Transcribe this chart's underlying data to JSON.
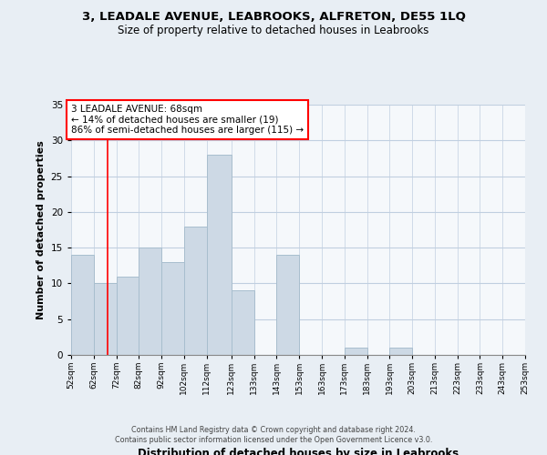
{
  "title": "3, LEADALE AVENUE, LEABROOKS, ALFRETON, DE55 1LQ",
  "subtitle": "Size of property relative to detached houses in Leabrooks",
  "xlabel": "Distribution of detached houses by size in Leabrooks",
  "ylabel": "Number of detached properties",
  "bin_edges": [
    52,
    62,
    72,
    82,
    92,
    102,
    112,
    123,
    133,
    143,
    153,
    163,
    173,
    183,
    193,
    203,
    213,
    223,
    233,
    243,
    253
  ],
  "bar_heights": [
    14,
    10,
    11,
    15,
    13,
    18,
    28,
    9,
    0,
    14,
    0,
    0,
    1,
    0,
    1,
    0,
    0,
    0,
    0,
    0
  ],
  "bar_color": "#cdd9e5",
  "bar_edgecolor": "#a8bece",
  "red_line_x": 68,
  "annotation_title": "3 LEADALE AVENUE: 68sqm",
  "annotation_line1": "← 14% of detached houses are smaller (19)",
  "annotation_line2": "86% of semi-detached houses are larger (115) →",
  "ylim": [
    0,
    35
  ],
  "yticks": [
    0,
    5,
    10,
    15,
    20,
    25,
    30,
    35
  ],
  "xtick_labels": [
    "52sqm",
    "62sqm",
    "72sqm",
    "82sqm",
    "92sqm",
    "102sqm",
    "112sqm",
    "123sqm",
    "133sqm",
    "143sqm",
    "153sqm",
    "163sqm",
    "173sqm",
    "183sqm",
    "193sqm",
    "203sqm",
    "213sqm",
    "223sqm",
    "233sqm",
    "243sqm",
    "253sqm"
  ],
  "footer_line1": "Contains HM Land Registry data © Crown copyright and database right 2024.",
  "footer_line2": "Contains public sector information licensed under the Open Government Licence v3.0.",
  "bg_color": "#e8eef4",
  "plot_bg_color": "#f5f8fb",
  "grid_color": "#c0cfe0"
}
